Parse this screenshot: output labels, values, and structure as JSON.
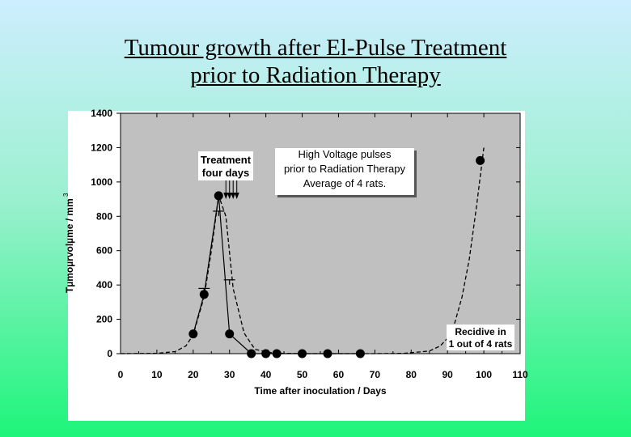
{
  "slide": {
    "title_line1": "Tumour growth after El-Pulse Treatment",
    "title_line2": "prior to Radiation Therapy"
  },
  "chart_data": {
    "type": "line",
    "xlabel": "Time after inoculation / Days",
    "ylabel": "Tµmoµrvolµme / mm",
    "ylabel_superscript": "3",
    "xlim": [
      0,
      110
    ],
    "ylim": [
      0,
      1400
    ],
    "xticks": [
      0,
      10,
      20,
      30,
      40,
      50,
      60,
      70,
      80,
      90,
      100,
      110
    ],
    "yticks": [
      0,
      200,
      400,
      600,
      800,
      1000,
      1200,
      1400
    ],
    "grid": false,
    "series": [
      {
        "style": "markers-solid",
        "x": [
          20,
          23,
          27,
          30,
          36,
          40,
          43,
          50,
          57,
          66
        ],
        "y": [
          115,
          345,
          920,
          115,
          0,
          0,
          0,
          0,
          0,
          0
        ]
      },
      {
        "style": "dashed-fit",
        "x": [
          0,
          10,
          15,
          18,
          20,
          23,
          25,
          27,
          29,
          31,
          34,
          37,
          42,
          50,
          60,
          70,
          78,
          85,
          88,
          90,
          92,
          94,
          96,
          98,
          100
        ],
        "y": [
          0,
          2,
          12,
          45,
          110,
          330,
          600,
          920,
          800,
          380,
          120,
          25,
          3,
          0,
          0,
          0,
          2,
          15,
          45,
          90,
          180,
          330,
          550,
          860,
          1200
        ]
      }
    ],
    "error_bars": [
      {
        "x": 23,
        "y": 380
      },
      {
        "x": 27,
        "y": 830
      },
      {
        "x": 30,
        "y": 430
      }
    ],
    "arrows_x": [
      29,
      30,
      31,
      32
    ],
    "annotations": [
      {
        "id": "treatment",
        "lines": [
          "Treatment",
          "four days"
        ]
      },
      {
        "id": "hv-box",
        "lines": [
          "High Voltage pulses",
          "prior to Radiation Therapy",
          "Average of 4 rats."
        ]
      },
      {
        "id": "recidive",
        "lines": [
          "Recidive in",
          "1 out of 4 rats"
        ]
      }
    ],
    "colors": {
      "plot_background": "#c0c0c0",
      "frame_background": "#ffffff",
      "markers": "#000000",
      "lines": "#000000"
    }
  }
}
